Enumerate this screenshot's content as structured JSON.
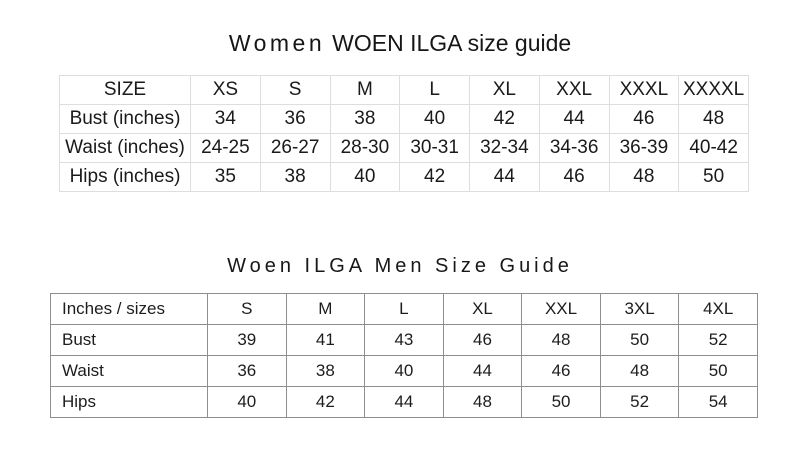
{
  "women": {
    "title_word": "Women",
    "title_rest": "WOEN ILGA size guide",
    "table": {
      "columns": [
        "SIZE",
        "XS",
        "S",
        "M",
        "L",
        "XL",
        "XXL",
        "XXXL",
        "XXXXL"
      ],
      "rows": [
        {
          "label": "Bust (inches)",
          "values": [
            "34",
            "36",
            "38",
            "40",
            "42",
            "44",
            "46",
            "48"
          ]
        },
        {
          "label": "Waist (inches)",
          "values": [
            "24-25",
            "26-27",
            "28-30",
            "30-31",
            "32-34",
            "34-36",
            "36-39",
            "40-42"
          ]
        },
        {
          "label": "Hips (inches)",
          "values": [
            "35",
            "38",
            "40",
            "42",
            "44",
            "46",
            "48",
            "50"
          ]
        }
      ],
      "border_color": "#dedede"
    }
  },
  "men": {
    "title": "Woen ILGA Men Size Guide",
    "table": {
      "columns": [
        "Inches / sizes",
        "S",
        "M",
        "L",
        "XL",
        "XXL",
        "3XL",
        "4XL"
      ],
      "rows": [
        {
          "label": "Bust",
          "values": [
            "39",
            "41",
            "43",
            "46",
            "48",
            "50",
            "52"
          ]
        },
        {
          "label": "Waist",
          "values": [
            "36",
            "38",
            "40",
            "44",
            "46",
            "48",
            "50"
          ]
        },
        {
          "label": "Hips",
          "values": [
            "40",
            "42",
            "44",
            "48",
            "50",
            "52",
            "54"
          ]
        }
      ],
      "border_color": "#8e8e8e"
    }
  },
  "colors": {
    "page_background": "#ffffff",
    "text": "#1a1a1a"
  }
}
